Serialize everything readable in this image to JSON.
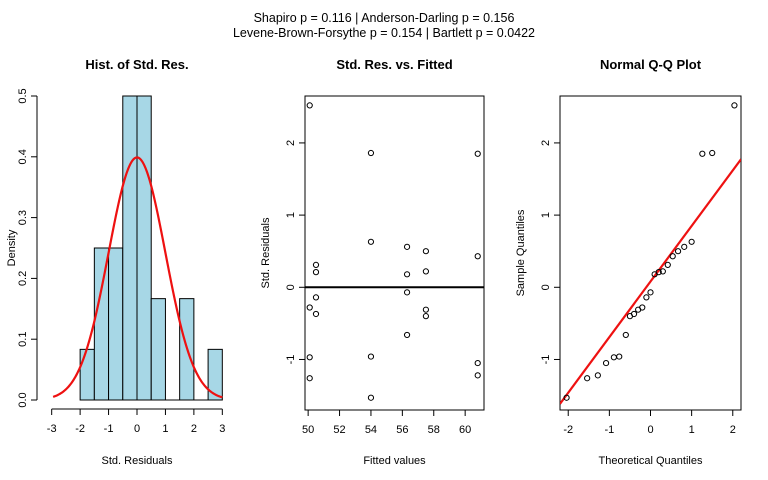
{
  "suptitle": {
    "line1": "Shapiro p = 0.116 | Anderson-Darling p = 0.156",
    "line2": "Levene-Brown-Forsythe p = 0.154 | Bartlett p = 0.0422"
  },
  "colors": {
    "bar_fill": "#a7d7e6",
    "curve": "#ee1111",
    "axis": "#000000"
  },
  "chart_data": [
    {
      "type": "bar",
      "title": "Hist. of Std. Res.",
      "xlabel": "Std. Residuals",
      "ylabel": "Density",
      "xlim": [
        -3.2,
        3.2
      ],
      "ylim": [
        0,
        0.5
      ],
      "xticks": [
        -3,
        -2,
        -1,
        0,
        1,
        2,
        3
      ],
      "yticks": [
        0.0,
        0.1,
        0.2,
        0.3,
        0.4,
        0.5
      ],
      "bins": [
        {
          "x0": -2.0,
          "x1": -1.5,
          "density": 0.0833
        },
        {
          "x0": -1.5,
          "x1": -1.0,
          "density": 0.25
        },
        {
          "x0": -1.0,
          "x1": -0.5,
          "density": 0.25
        },
        {
          "x0": -0.5,
          "x1": 0.0,
          "density": 0.5
        },
        {
          "x0": 0.0,
          "x1": 0.5,
          "density": 0.5
        },
        {
          "x0": 0.5,
          "x1": 1.0,
          "density": 0.1667
        },
        {
          "x0": 1.0,
          "x1": 1.5,
          "density": 0.0
        },
        {
          "x0": 1.5,
          "x1": 2.0,
          "density": 0.1667
        },
        {
          "x0": 2.0,
          "x1": 2.5,
          "density": 0.0
        },
        {
          "x0": 2.5,
          "x1": 3.0,
          "density": 0.0833
        }
      ],
      "overlay": {
        "type": "line",
        "dist": "normal",
        "mean": 0,
        "sd": 1
      }
    },
    {
      "type": "scatter",
      "title": "Std. Res. vs. Fitted",
      "xlabel": "Fitted values",
      "ylabel": "Std. Residuals",
      "xlim": [
        49.8,
        61.2
      ],
      "ylim": [
        -1.7,
        2.65
      ],
      "xticks": [
        50,
        52,
        54,
        56,
        58,
        60
      ],
      "yticks": [
        -1,
        0,
        1,
        2
      ],
      "points": [
        {
          "x": 50.1,
          "y": 2.52
        },
        {
          "x": 50.1,
          "y": -0.28
        },
        {
          "x": 50.1,
          "y": -0.97
        },
        {
          "x": 50.1,
          "y": -1.26
        },
        {
          "x": 50.5,
          "y": 0.31
        },
        {
          "x": 50.5,
          "y": 0.21
        },
        {
          "x": 50.5,
          "y": -0.14
        },
        {
          "x": 50.5,
          "y": -0.37
        },
        {
          "x": 54.0,
          "y": 1.86
        },
        {
          "x": 54.0,
          "y": 0.63
        },
        {
          "x": 54.0,
          "y": -0.96
        },
        {
          "x": 54.0,
          "y": -1.53
        },
        {
          "x": 56.3,
          "y": 0.56
        },
        {
          "x": 56.3,
          "y": 0.18
        },
        {
          "x": 56.3,
          "y": -0.07
        },
        {
          "x": 56.3,
          "y": -0.66
        },
        {
          "x": 57.5,
          "y": 0.5
        },
        {
          "x": 57.5,
          "y": 0.22
        },
        {
          "x": 57.5,
          "y": -0.31
        },
        {
          "x": 57.5,
          "y": -0.4
        },
        {
          "x": 60.8,
          "y": 1.85
        },
        {
          "x": 60.8,
          "y": 0.43
        },
        {
          "x": 60.8,
          "y": -1.05
        },
        {
          "x": 60.8,
          "y": -1.22
        }
      ],
      "reference_line": {
        "y": 0
      }
    },
    {
      "type": "scatter",
      "title": "Normal Q-Q Plot",
      "xlabel": "Theoretical Quantiles",
      "ylabel": "Sample Quantiles",
      "xlim": [
        -2.2,
        2.2
      ],
      "ylim": [
        -1.7,
        2.65
      ],
      "xticks": [
        -2,
        -1,
        0,
        1,
        2
      ],
      "yticks": [
        -1,
        0,
        1,
        2
      ],
      "points": [
        {
          "x": -2.04,
          "y": -1.53
        },
        {
          "x": -1.54,
          "y": -1.26
        },
        {
          "x": -1.28,
          "y": -1.22
        },
        {
          "x": -1.08,
          "y": -1.05
        },
        {
          "x": -0.89,
          "y": -0.97
        },
        {
          "x": -0.76,
          "y": -0.96
        },
        {
          "x": -0.6,
          "y": -0.66
        },
        {
          "x": -0.5,
          "y": -0.4
        },
        {
          "x": -0.4,
          "y": -0.37
        },
        {
          "x": -0.3,
          "y": -0.31
        },
        {
          "x": -0.2,
          "y": -0.28
        },
        {
          "x": -0.1,
          "y": -0.14
        },
        {
          "x": 0.0,
          "y": -0.07
        },
        {
          "x": 0.1,
          "y": 0.18
        },
        {
          "x": 0.2,
          "y": 0.21
        },
        {
          "x": 0.3,
          "y": 0.22
        },
        {
          "x": 0.42,
          "y": 0.31
        },
        {
          "x": 0.54,
          "y": 0.43
        },
        {
          "x": 0.67,
          "y": 0.5
        },
        {
          "x": 0.82,
          "y": 0.56
        },
        {
          "x": 1.0,
          "y": 0.63
        },
        {
          "x": 1.26,
          "y": 1.85
        },
        {
          "x": 1.5,
          "y": 1.86
        },
        {
          "x": 2.04,
          "y": 2.52
        }
      ],
      "reference_line": {
        "intercept": 0.08,
        "slope": 0.77
      }
    }
  ]
}
